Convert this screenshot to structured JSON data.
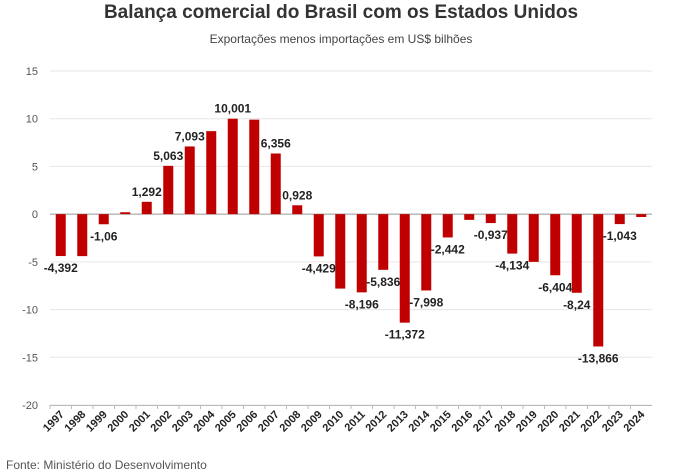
{
  "header": {
    "title": "Balança comercial do Brasil com os Estados Unidos",
    "subtitle": "Exportações menos importações em US$ bilhões"
  },
  "footer": {
    "source": "Fonte: Ministério do Desenvolvimento"
  },
  "colors": {
    "bar": "#c00000",
    "grid": "#e6e6e6",
    "zero_line": "#999999"
  },
  "chart_data": {
    "type": "bar",
    "title": "Balança comercial do Brasil com os Estados Unidos",
    "subtitle": "Exportações menos importações em US$ bilhões",
    "xlabel": "",
    "ylabel": "",
    "ylim": [
      -20,
      15
    ],
    "yticks": [
      15,
      10,
      5,
      0,
      -5,
      -10,
      -15,
      -20
    ],
    "grid": true,
    "legend": "none",
    "categories": [
      "1997",
      "1998",
      "1999",
      "2000",
      "2001",
      "2002",
      "2003",
      "2004",
      "2005",
      "2006",
      "2007",
      "2008",
      "2009",
      "2010",
      "2011",
      "2012",
      "2013",
      "2014",
      "2015",
      "2016",
      "2017",
      "2018",
      "2019",
      "2020",
      "2021",
      "2022",
      "2023",
      "2024"
    ],
    "values": [
      -4.392,
      -4.4,
      -1.06,
      0.2,
      1.292,
      5.063,
      7.093,
      8.7,
      10.001,
      9.9,
      6.356,
      0.928,
      -4.429,
      -7.8,
      -8.196,
      -5.836,
      -11.372,
      -7.998,
      -2.442,
      -0.6,
      -0.937,
      -4.134,
      -5.0,
      -6.404,
      -8.24,
      -13.866,
      -1.043,
      -0.3
    ],
    "data_labels": [
      "-4,392",
      "",
      "-1,06",
      "",
      "1,292",
      "5,063",
      "7,093",
      "",
      "10,001",
      "",
      "6,356",
      "0,928",
      "-4,429",
      "",
      "-8,196",
      "-5,836",
      "-11,372",
      "-7,998",
      "-2,442",
      "",
      "-0,937",
      "-4,134",
      "",
      "-6,404",
      "-8,24",
      "-13,866",
      "-1,043",
      ""
    ]
  }
}
